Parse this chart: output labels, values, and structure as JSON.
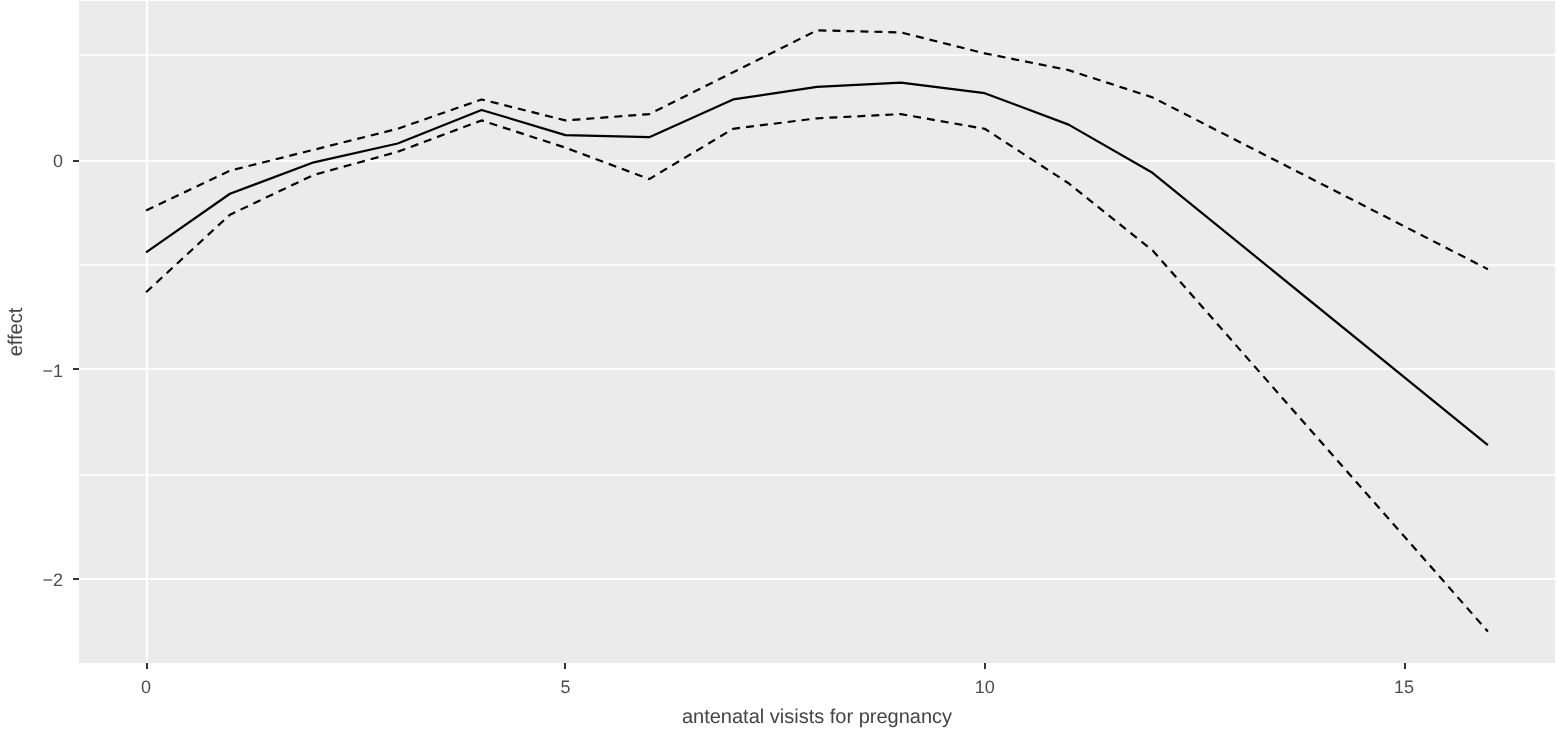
{
  "chart_data": {
    "type": "line",
    "xlabel": "antenatal visists for pregnancy",
    "ylabel": "effect",
    "x": [
      0,
      1,
      2,
      3,
      4,
      5,
      6,
      7,
      8,
      9,
      10,
      11,
      12,
      16
    ],
    "series": [
      {
        "color": "#000000",
        "line_style": "solid",
        "values": [
          -0.44,
          -0.16,
          -0.01,
          0.08,
          0.24,
          0.12,
          0.11,
          0.29,
          0.35,
          0.37,
          0.32,
          0.17,
          -0.06,
          -1.36
        ]
      },
      {
        "color": "#000000",
        "line_style": "dashed",
        "values": [
          -0.24,
          -0.05,
          0.05,
          0.15,
          0.29,
          0.19,
          0.22,
          0.42,
          0.62,
          0.61,
          0.51,
          0.43,
          0.3,
          -0.52
        ]
      },
      {
        "color": "#000000",
        "line_style": "dashed",
        "values": [
          -0.63,
          -0.26,
          -0.07,
          0.04,
          0.19,
          0.06,
          -0.09,
          0.15,
          0.2,
          0.22,
          0.15,
          -0.11,
          -0.43,
          -2.25
        ]
      }
    ],
    "xlim": [
      -0.8,
      16.8
    ],
    "ylim": [
      -2.4,
      0.76
    ],
    "xticks": [
      0,
      5,
      10,
      15
    ],
    "yticks": [
      -2,
      -1,
      0
    ],
    "grid": true,
    "marker": "none"
  }
}
